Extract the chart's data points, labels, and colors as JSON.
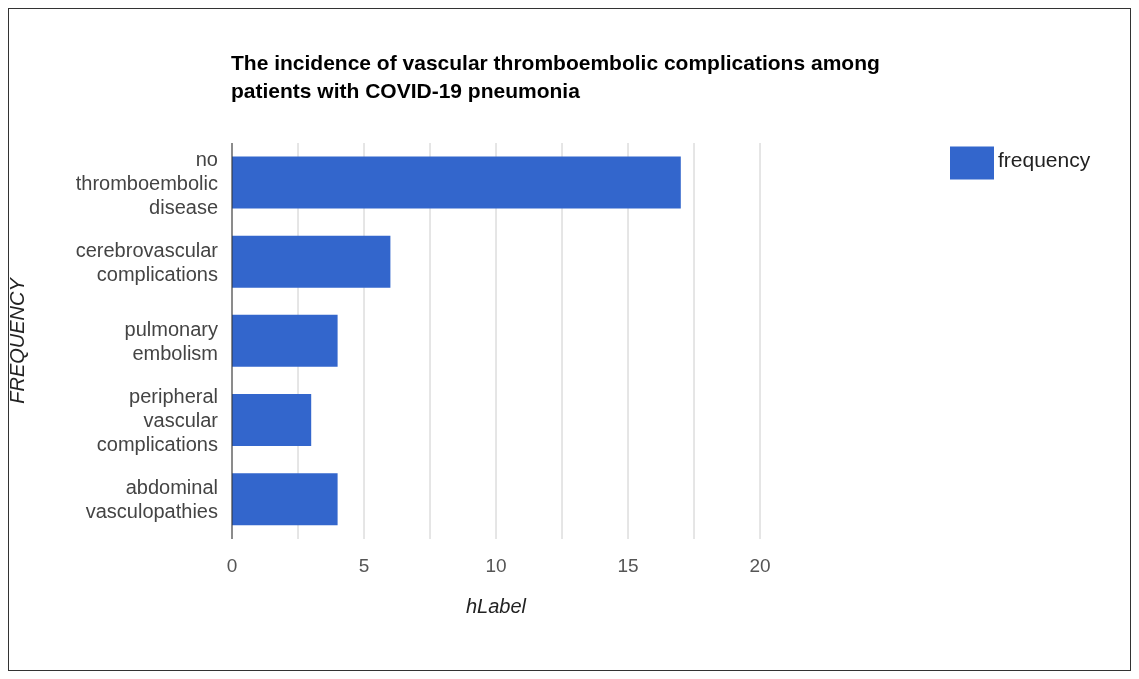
{
  "chart_data": {
    "type": "bar",
    "orientation": "horizontal",
    "title": "The incidence of vascular thromboembolic complications among patients with COVID-19 pneumonia",
    "xlabel": "hLabel",
    "ylabel": "FREQUENCY",
    "categories": [
      "no thromboembolic disease",
      "cerebrovascular complications",
      "pulmonary embolism",
      "peripheral vascular complications",
      "abdominal vasculopathies"
    ],
    "series": [
      {
        "name": "frequency",
        "color": "#3366cc",
        "values": [
          17,
          6,
          4,
          3,
          4
        ]
      }
    ],
    "xlim": [
      0,
      20
    ],
    "xticks": [
      0,
      {
        "value": 2.5,
        "label": null
      },
      5,
      {
        "value": 7.5,
        "label": null
      },
      10,
      {
        "value": 12.5,
        "label": null
      },
      15,
      {
        "value": 17.5,
        "label": null
      },
      20
    ],
    "grid": "x",
    "legend": "top right"
  }
}
